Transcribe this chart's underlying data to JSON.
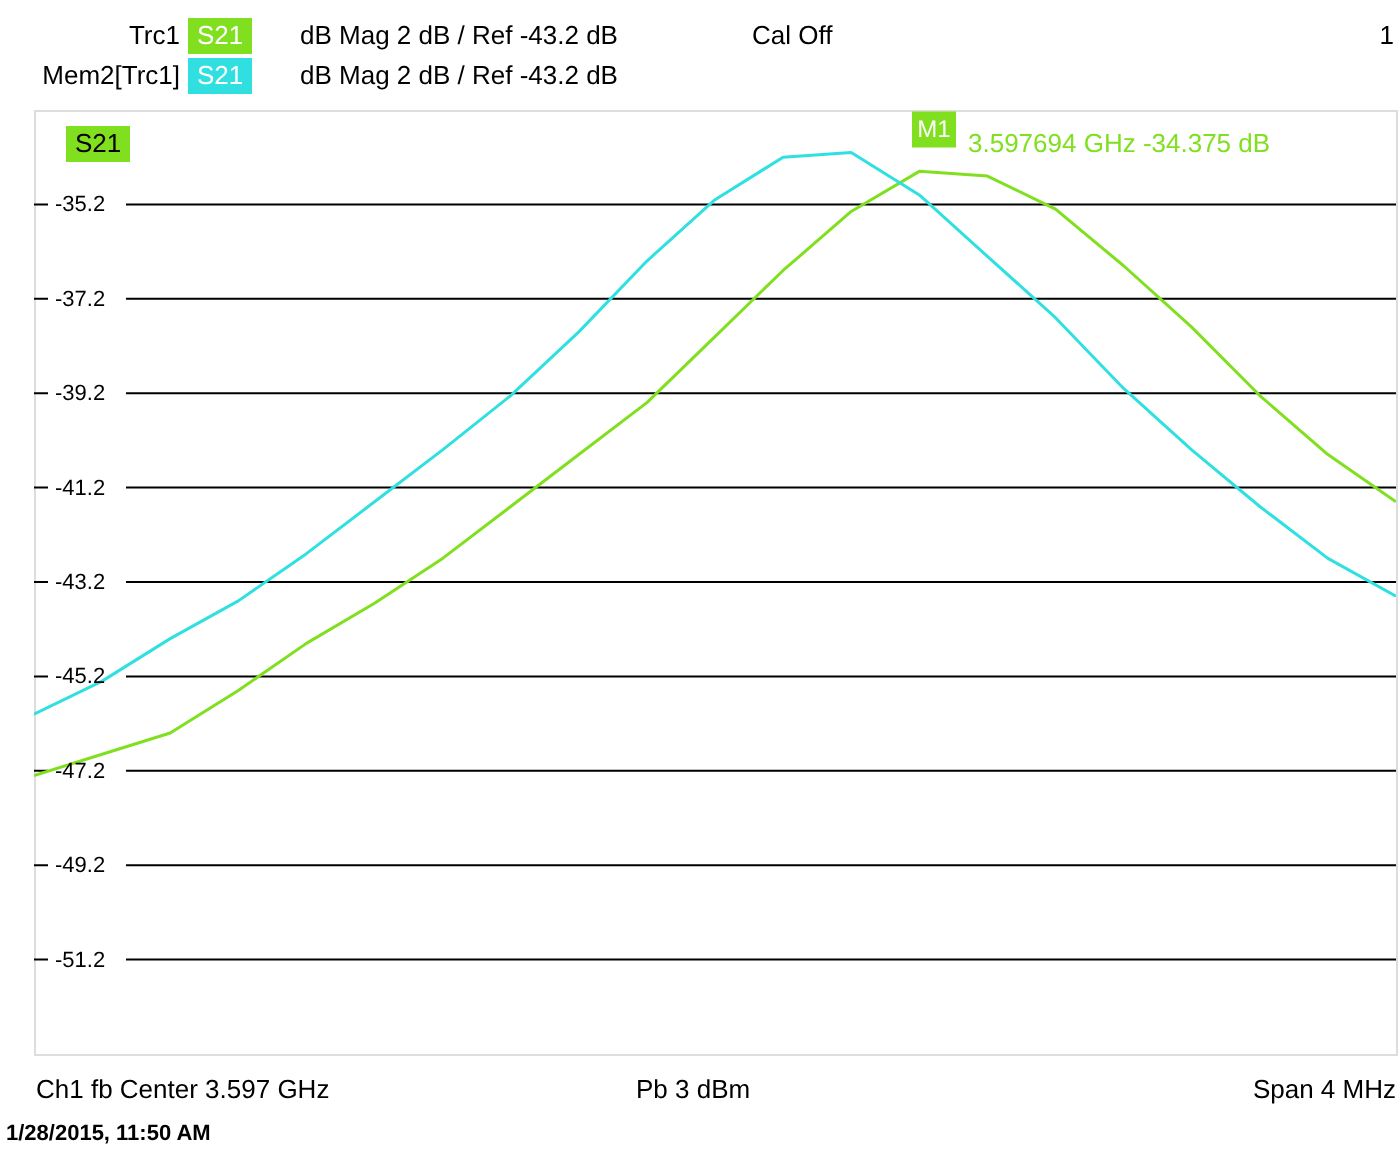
{
  "chart_data": {
    "type": "line",
    "categories": [
      null,
      null,
      null,
      null,
      null,
      null,
      null,
      null,
      null,
      null,
      null,
      null,
      null,
      null,
      null,
      null,
      null,
      null,
      null,
      null,
      null
    ],
    "ylim": [
      -53.2,
      -33.2
    ],
    "yticks": [
      -35.2,
      -37.2,
      -39.2,
      -41.2,
      -43.2,
      -45.2,
      -47.2,
      -49.2,
      -51.2
    ],
    "tick_labels": "y",
    "grid": "y",
    "legend": "top left",
    "marker": "none",
    "line_style": "solid",
    "series": [
      {
        "name": "Trc1",
        "color": "#80e020",
        "values": [
          -47.3,
          -46.85,
          -46.4,
          -45.5,
          -44.5,
          -43.65,
          -42.7,
          -41.6,
          -40.5,
          -39.4,
          -38.0,
          -36.6,
          -35.35,
          -34.5,
          -34.6,
          -35.3,
          -36.5,
          -37.8,
          -39.25,
          -40.5,
          -41.5
        ]
      },
      {
        "name": "Mem2[Trc1]",
        "color": "#30e0e0",
        "values": [
          -46.0,
          -45.3,
          -44.4,
          -43.6,
          -42.6,
          -41.5,
          -40.4,
          -39.25,
          -37.9,
          -36.4,
          -35.1,
          -34.2,
          -34.1,
          -35.0,
          -36.3,
          -37.6,
          -39.1,
          -40.4,
          -41.6,
          -42.7,
          -43.5
        ]
      }
    ],
    "annotations": [
      "S21",
      "dB Mag  2 dB /  Ref -43.2 dB",
      "Cal Off",
      "1",
      "S21",
      "dB Mag  2 dB /  Ref -43.2 dB",
      "S21",
      {
        "text": "M1",
        "y": -34.375
      },
      "3.597694 GHz  -34.375 dB",
      "Ch1  fb  Center  3.597 GHz",
      "Pb   3 dBm",
      "Span  4 MHz",
      "1/28/2015, 11:50 AM"
    ]
  }
}
